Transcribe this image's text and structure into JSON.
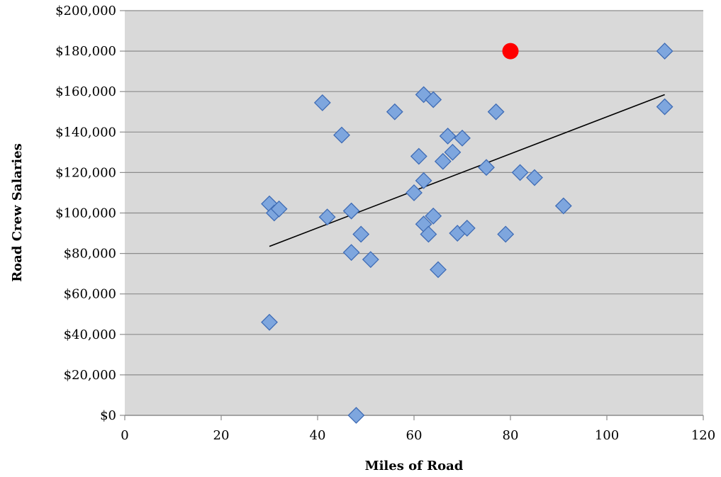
{
  "chart_data": {
    "type": "scatter",
    "title": "",
    "xlabel": "Miles of Road",
    "ylabel": "Road Crew Salaries",
    "xlim": [
      0,
      120
    ],
    "ylim": [
      0,
      200000
    ],
    "x_ticks": [
      0,
      20,
      40,
      60,
      80,
      100,
      120
    ],
    "x_tick_labels": [
      "0",
      "20",
      "40",
      "60",
      "80",
      "100",
      "120"
    ],
    "y_ticks": [
      0,
      20000,
      40000,
      60000,
      80000,
      100000,
      120000,
      140000,
      160000,
      180000,
      200000
    ],
    "y_tick_labels": [
      "$0",
      "$20,000",
      "$40,000",
      "$60,000",
      "$80,000",
      "$100,000",
      "$120,000",
      "$140,000",
      "$160,000",
      "$180,000",
      "$200,000"
    ],
    "grid": "horizontal",
    "colors": {
      "plot_background": "#d9d9d9",
      "grid": "#8c8c8c",
      "marker_fill": "#7ea6de",
      "marker_stroke": "#3f6cb5",
      "highlight": "#ff0000",
      "trendline": "#000000"
    },
    "series": [
      {
        "marker": "diamond",
        "points": [
          [
            30,
            104500
          ],
          [
            31,
            100000
          ],
          [
            32,
            102000
          ],
          [
            30,
            46000
          ],
          [
            41,
            154500
          ],
          [
            42,
            98000
          ],
          [
            45,
            138500
          ],
          [
            47,
            101000
          ],
          [
            47,
            80500
          ],
          [
            48,
            0
          ],
          [
            49,
            89500
          ],
          [
            51,
            77000
          ],
          [
            56,
            150000
          ],
          [
            60,
            110000
          ],
          [
            61,
            128000
          ],
          [
            62,
            158500
          ],
          [
            62,
            116000
          ],
          [
            62,
            94500
          ],
          [
            63,
            89500
          ],
          [
            64,
            156000
          ],
          [
            64,
            98500
          ],
          [
            65,
            72000
          ],
          [
            66,
            125500
          ],
          [
            67,
            138000
          ],
          [
            68,
            130000
          ],
          [
            69,
            90000
          ],
          [
            70,
            137000
          ],
          [
            71,
            92500
          ],
          [
            75,
            122500
          ],
          [
            77,
            150000
          ],
          [
            79,
            89500
          ],
          [
            82,
            120000
          ],
          [
            85,
            117500
          ],
          [
            91,
            103500
          ],
          [
            112,
            180000
          ],
          [
            112,
            152500
          ]
        ]
      },
      {
        "marker": "circle",
        "points": [
          [
            80,
            180000
          ]
        ]
      }
    ],
    "trendline": {
      "from": [
        30,
        83500
      ],
      "to": [
        112,
        158500
      ]
    }
  }
}
